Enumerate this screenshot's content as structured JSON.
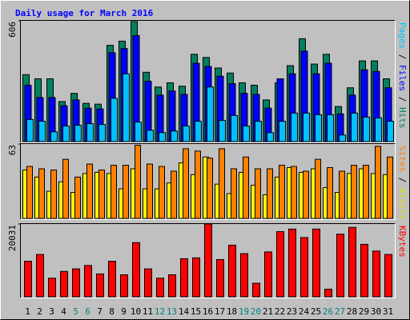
{
  "title": "Daily usage for March 2016",
  "legend_separator": " / ",
  "chart_data": [
    {
      "type": "bar",
      "ylim": [
        0,
        606
      ],
      "yticks": [
        606
      ],
      "series": [
        {
          "name": "Hits",
          "color": "#008060",
          "label_color": "#008060",
          "values": [
            336,
            315,
            315,
            201,
            242,
            192,
            188,
            483,
            504,
            602,
            348,
            274,
            295,
            278,
            438,
            422,
            369,
            344,
            295,
            283,
            209,
            295,
            381,
            516,
            389,
            438,
            176,
            270,
            405,
            405,
            315
          ]
        },
        {
          "name": "Files",
          "color": "#0000ff",
          "label_color": "#0000ff",
          "values": [
            283,
            221,
            221,
            180,
            209,
            168,
            164,
            446,
            467,
            532,
            303,
            233,
            254,
            237,
            393,
            377,
            328,
            291,
            242,
            237,
            168,
            315,
            340,
            454,
            340,
            393,
            139,
            233,
            360,
            352,
            270
          ]
        },
        {
          "name": "Pages",
          "color": "#00c0ff",
          "label_color": "#00c0ff",
          "values": [
            111,
            102,
            49,
            78,
            82,
            90,
            86,
            217,
            340,
            98,
            57,
            45,
            53,
            78,
            102,
            274,
            106,
            131,
            78,
            102,
            45,
            102,
            143,
            143,
            135,
            135,
            33,
            143,
            123,
            119,
            102
          ]
        }
      ]
    },
    {
      "type": "bar",
      "ylim": [
        0,
        63
      ],
      "yticks": [
        63
      ],
      "series": [
        {
          "name": "Visits",
          "color": "#ffff00",
          "label_color": "#e0e000",
          "values": [
            41,
            35,
            23,
            31,
            22,
            38,
            39,
            38,
            25,
            42,
            25,
            25,
            30,
            47,
            37,
            52,
            29,
            21,
            39,
            28,
            20,
            35,
            43,
            39,
            42,
            26,
            22,
            38,
            42,
            38,
            37
          ]
        },
        {
          "name": "Sites",
          "color": "#ff8000",
          "label_color": "#ff8000",
          "values": [
            44,
            42,
            41,
            50,
            35,
            46,
            41,
            45,
            45,
            62,
            46,
            44,
            40,
            59,
            57,
            51,
            59,
            42,
            52,
            42,
            42,
            45,
            44,
            40,
            50,
            43,
            40,
            45,
            45,
            61,
            52
          ]
        }
      ]
    },
    {
      "type": "bar",
      "ylim": [
        0,
        20031
      ],
      "yticks": [
        20031
      ],
      "categories": [
        "1",
        "2",
        "3",
        "4",
        "5",
        "6",
        "7",
        "8",
        "9",
        "10",
        "11",
        "12",
        "13",
        "14",
        "15",
        "16",
        "17",
        "18",
        "19",
        "20",
        "21",
        "22",
        "23",
        "24",
        "25",
        "26",
        "27",
        "28",
        "29",
        "30",
        "31"
      ],
      "category_colors": [
        "#000000",
        "#000000",
        "#000000",
        "#000000",
        "#008080",
        "#008080",
        "#000000",
        "#000000",
        "#000000",
        "#000000",
        "#000000",
        "#008080",
        "#008080",
        "#000000",
        "#000000",
        "#000000",
        "#000000",
        "#000000",
        "#008080",
        "#008080",
        "#000000",
        "#000000",
        "#000000",
        "#000000",
        "#000000",
        "#008080",
        "#008080",
        "#000000",
        "#000000",
        "#000000",
        "#000000"
      ],
      "series": [
        {
          "name": "KBytes",
          "color": "#ff0000",
          "label_color": "#ff0000",
          "values": [
            9783,
            11646,
            5124,
            6988,
            7686,
            8618,
            6289,
            9783,
            6056,
            14907,
            7686,
            5124,
            6056,
            10481,
            10714,
            20031,
            10248,
            14208,
            11879,
            3727,
            12345,
            17935,
            18634,
            16304,
            18634,
            2096,
            17236,
            19099,
            14441,
            12578,
            11646
          ]
        }
      ]
    }
  ]
}
